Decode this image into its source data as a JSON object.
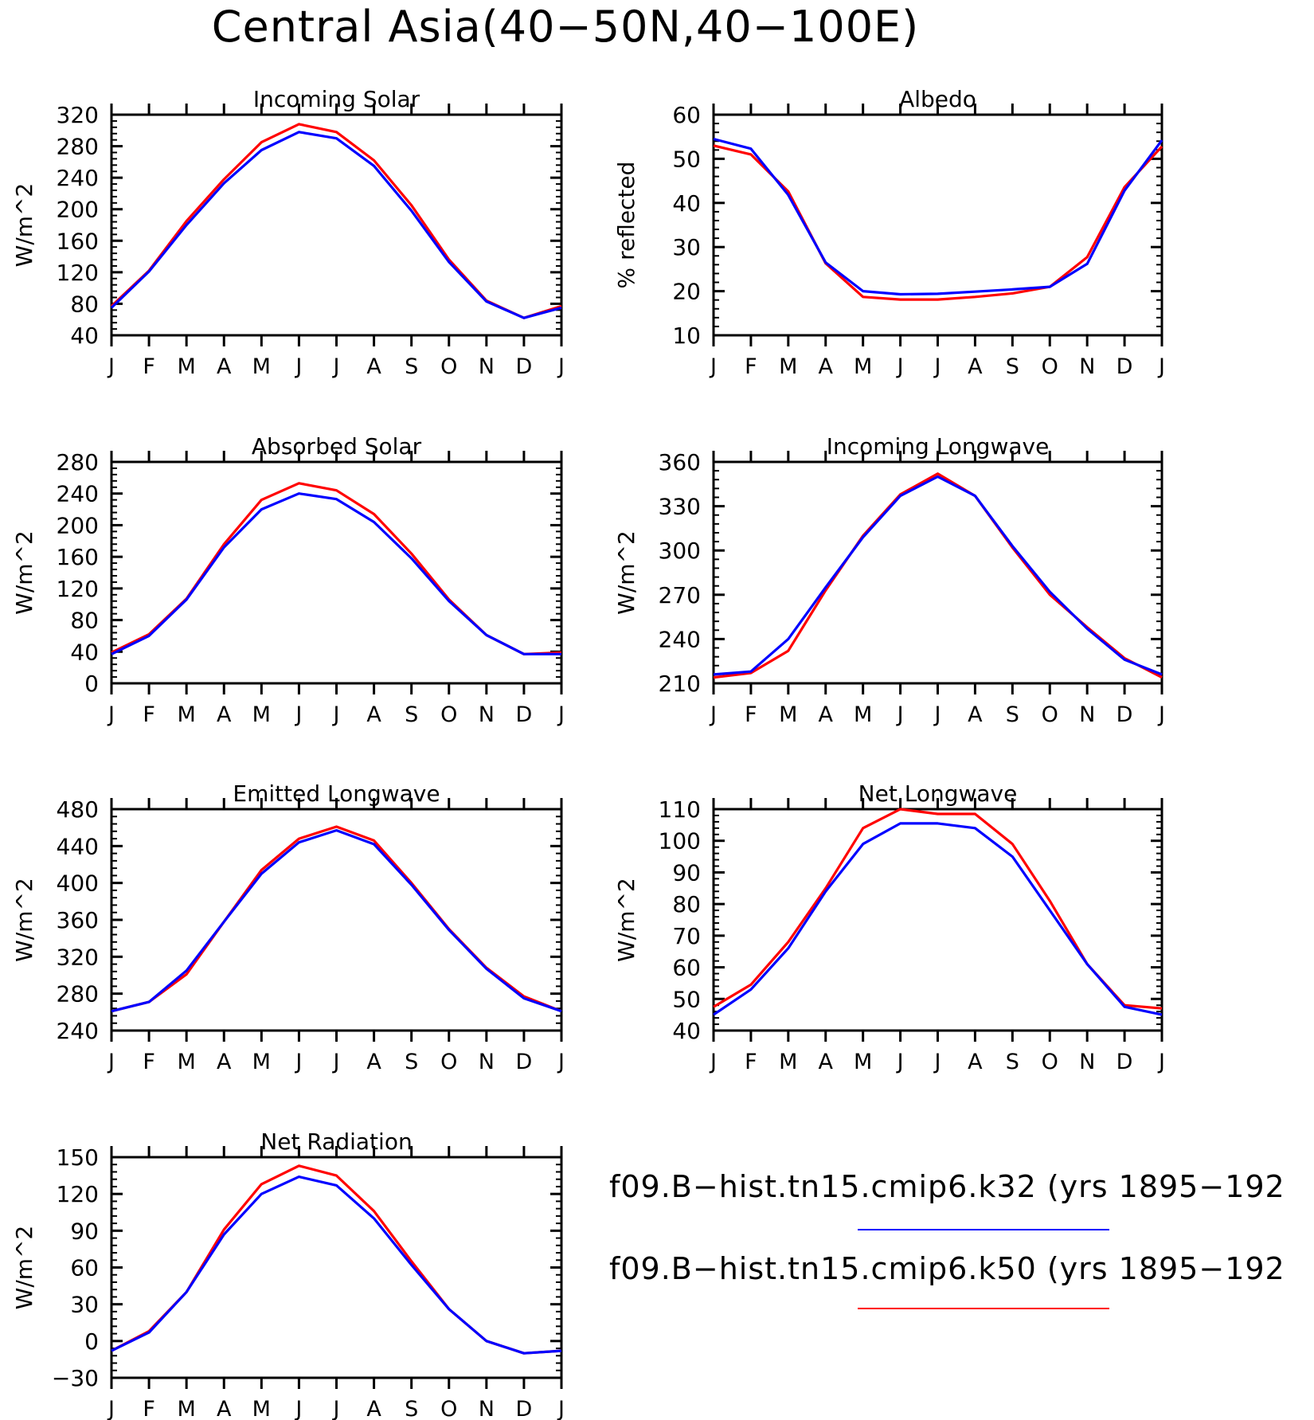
{
  "figure": {
    "title": "Central Asia(40−50N,40−100E)",
    "series_colors": {
      "k32": "#0000ff",
      "k50": "#ff0000"
    },
    "legend": [
      {
        "label": "f09.B−hist.tn15.cmip6.k32 (yrs 1895−192",
        "color": "#0000ff"
      },
      {
        "label": "f09.B−hist.tn15.cmip6.k50 (yrs 1895−192",
        "color": "#ff0000"
      }
    ]
  },
  "chart_data": [
    {
      "type": "line",
      "title": "Incoming Solar",
      "ylabel": "W/m^2",
      "xlabel": "",
      "categories": [
        "J",
        "F",
        "M",
        "A",
        "M",
        "J",
        "J",
        "A",
        "S",
        "O",
        "N",
        "D",
        "J"
      ],
      "ylim": [
        40,
        320
      ],
      "yticks": [
        40,
        80,
        120,
        160,
        200,
        240,
        280,
        320
      ],
      "series": [
        {
          "name": "f09.B−hist.tn15.cmip6.k32",
          "color": "#0000ff",
          "values": [
            75,
            121,
            180,
            233,
            275,
            298,
            290,
            255,
            198,
            133,
            83,
            62,
            75
          ]
        },
        {
          "name": "f09.B−hist.tn15.cmip6.k50",
          "color": "#ff0000",
          "values": [
            77,
            122,
            185,
            238,
            285,
            308,
            298,
            262,
            205,
            136,
            84,
            62,
            77
          ]
        }
      ]
    },
    {
      "type": "line",
      "title": "Albedo",
      "ylabel": "% reflected",
      "xlabel": "",
      "categories": [
        "J",
        "F",
        "M",
        "A",
        "M",
        "J",
        "J",
        "A",
        "S",
        "O",
        "N",
        "D",
        "J"
      ],
      "ylim": [
        10,
        60
      ],
      "yticks": [
        10,
        20,
        30,
        40,
        50,
        60
      ],
      "series": [
        {
          "name": "f09.B−hist.tn15.cmip6.k32",
          "color": "#0000ff",
          "values": [
            54.5,
            52.3,
            41.8,
            26.5,
            20.0,
            19.3,
            19.4,
            19.9,
            20.4,
            21.0,
            26.2,
            42.8,
            54.2
          ]
        },
        {
          "name": "f09.B−hist.tn15.cmip6.k50",
          "color": "#ff0000",
          "values": [
            53.0,
            51.0,
            42.6,
            26.3,
            18.7,
            18.1,
            18.1,
            18.7,
            19.5,
            21.0,
            27.7,
            43.6,
            52.8
          ]
        }
      ]
    },
    {
      "type": "line",
      "title": "Absorbed Solar",
      "ylabel": "W/m^2",
      "xlabel": "",
      "categories": [
        "J",
        "F",
        "M",
        "A",
        "M",
        "J",
        "J",
        "A",
        "S",
        "O",
        "N",
        "D",
        "J"
      ],
      "ylim": [
        0,
        280
      ],
      "yticks": [
        0,
        40,
        80,
        120,
        160,
        200,
        240,
        280
      ],
      "series": [
        {
          "name": "f09.B−hist.tn15.cmip6.k32",
          "color": "#0000ff",
          "values": [
            37,
            60,
            106,
            172,
            220,
            240,
            233,
            204,
            158,
            104,
            61,
            37,
            37
          ]
        },
        {
          "name": "f09.B−hist.tn15.cmip6.k50",
          "color": "#ff0000",
          "values": [
            39,
            62,
            107,
            176,
            232,
            253,
            244,
            214,
            164,
            106,
            61,
            37,
            39
          ]
        }
      ]
    },
    {
      "type": "line",
      "title": "Incoming Longwave",
      "ylabel": "W/m^2",
      "xlabel": "",
      "categories": [
        "J",
        "F",
        "M",
        "A",
        "M",
        "J",
        "J",
        "A",
        "S",
        "O",
        "N",
        "D",
        "J"
      ],
      "ylim": [
        210,
        360
      ],
      "yticks": [
        210,
        240,
        270,
        300,
        330,
        360
      ],
      "series": [
        {
          "name": "f09.B−hist.tn15.cmip6.k32",
          "color": "#0000ff",
          "values": [
            216,
            218,
            240,
            275,
            309,
            337,
            350,
            337,
            303,
            272,
            247,
            226,
            216
          ]
        },
        {
          "name": "f09.B−hist.tn15.cmip6.k50",
          "color": "#ff0000",
          "values": [
            214,
            217,
            232,
            273,
            310,
            338,
            352,
            337,
            302,
            270,
            248,
            227,
            214
          ]
        }
      ]
    },
    {
      "type": "line",
      "title": "Emitted Longwave",
      "ylabel": "W/m^2",
      "xlabel": "",
      "categories": [
        "J",
        "F",
        "M",
        "A",
        "M",
        "J",
        "J",
        "A",
        "S",
        "O",
        "N",
        "D",
        "J"
      ],
      "ylim": [
        240,
        480
      ],
      "yticks": [
        240,
        280,
        320,
        360,
        400,
        440,
        480
      ],
      "series": [
        {
          "name": "f09.B−hist.tn15.cmip6.k32",
          "color": "#0000ff",
          "values": [
            261,
            271,
            305,
            358,
            410,
            444,
            457,
            442,
            398,
            349,
            307,
            275,
            261
          ]
        },
        {
          "name": "f09.B−hist.tn15.cmip6.k50",
          "color": "#ff0000",
          "values": [
            261,
            271,
            301,
            358,
            414,
            448,
            461,
            446,
            400,
            350,
            308,
            277,
            261
          ]
        }
      ]
    },
    {
      "type": "line",
      "title": "Net Longwave",
      "ylabel": "W/m^2",
      "xlabel": "",
      "categories": [
        "J",
        "F",
        "M",
        "A",
        "M",
        "J",
        "J",
        "A",
        "S",
        "O",
        "N",
        "D",
        "J"
      ],
      "ylim": [
        40,
        110
      ],
      "yticks": [
        40,
        50,
        60,
        70,
        80,
        90,
        100,
        110
      ],
      "series": [
        {
          "name": "f09.B−hist.tn15.cmip6.k32",
          "color": "#0000ff",
          "values": [
            45,
            53,
            66,
            84,
            99,
            105.5,
            105.5,
            104,
            95,
            78,
            61,
            47.5,
            45
          ]
        },
        {
          "name": "f09.B−hist.tn15.cmip6.k50",
          "color": "#ff0000",
          "values": [
            47.5,
            54.5,
            68,
            85,
            104,
            110,
            108.5,
            108.5,
            99,
            81,
            61,
            48,
            47
          ]
        }
      ]
    },
    {
      "type": "line",
      "title": "Net Radiation",
      "ylabel": "W/m^2",
      "xlabel": "",
      "categories": [
        "J",
        "F",
        "M",
        "A",
        "M",
        "J",
        "J",
        "A",
        "S",
        "O",
        "N",
        "D",
        "J"
      ],
      "ylim": [
        -30,
        150
      ],
      "yticks": [
        -30,
        0,
        30,
        60,
        90,
        120,
        150
      ],
      "series": [
        {
          "name": "f09.B−hist.tn15.cmip6.k32",
          "color": "#0000ff",
          "values": [
            -8,
            7,
            40,
            87,
            120,
            134,
            127,
            100,
            62,
            26,
            0,
            -10,
            -8
          ]
        },
        {
          "name": "f09.B−hist.tn15.cmip6.k50",
          "color": "#ff0000",
          "values": [
            -8,
            8,
            40,
            91,
            128,
            143,
            135,
            106,
            65,
            26,
            0,
            -10,
            -8
          ]
        }
      ]
    }
  ]
}
